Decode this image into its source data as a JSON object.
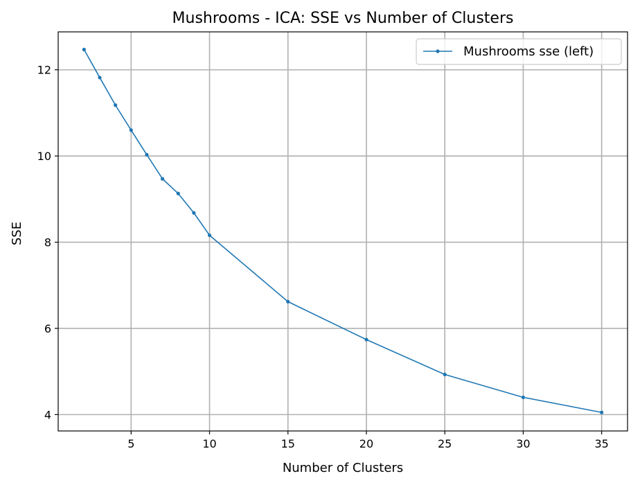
{
  "chart_data": {
    "type": "line",
    "title": "Mushrooms - ICA: SSE vs Number of Clusters",
    "xlabel": "Number of Clusters",
    "ylabel": "SSE",
    "xlim": [
      0.35,
      36.65
    ],
    "ylim": [
      3.62,
      12.88
    ],
    "xticks": [
      5,
      10,
      15,
      20,
      25,
      30,
      35
    ],
    "yticks": [
      4,
      6,
      8,
      10,
      12
    ],
    "grid": true,
    "legend_position": "top-right",
    "series": [
      {
        "name": "Mushrooms sse (left)",
        "color": "#1f77b4",
        "x": [
          2,
          3,
          4,
          5,
          6,
          7,
          8,
          9,
          10,
          15,
          20,
          25,
          30,
          35
        ],
        "y": [
          12.47,
          11.82,
          11.18,
          10.6,
          10.03,
          9.47,
          9.13,
          8.68,
          8.16,
          6.62,
          5.74,
          4.93,
          4.4,
          4.05
        ]
      }
    ]
  }
}
